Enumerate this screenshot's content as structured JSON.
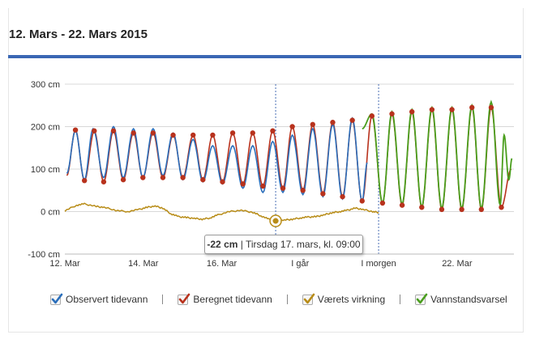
{
  "header": {
    "title": "12. Mars - 22. Mars 2015"
  },
  "colors": {
    "observed": "#2a6ebb",
    "computed": "#b8321d",
    "weather": "#b88c17",
    "forecast": "#4a9e1d",
    "grid": "#d8d8d8",
    "marker_line": "#4a6fb5"
  },
  "chart_data": {
    "type": "line",
    "title": "12. Mars - 22. Mars 2015",
    "xlabel": "",
    "ylabel": "",
    "ylim": [
      -100,
      300
    ],
    "xlim": [
      12.0,
      23.45
    ],
    "y_ticks": [
      {
        "value": 300,
        "label": "300 cm"
      },
      {
        "value": 200,
        "label": "200 cm"
      },
      {
        "value": 100,
        "label": "100 cm"
      },
      {
        "value": 0,
        "label": "0 cm"
      },
      {
        "value": -100,
        "label": "-100 cm"
      }
    ],
    "x_ticks": [
      {
        "value": 12.0,
        "label": "12. Mar"
      },
      {
        "value": 14.0,
        "label": "14. Mar"
      },
      {
        "value": 16.0,
        "label": "16. Mar"
      },
      {
        "value": 18.0,
        "label": "I går"
      },
      {
        "value": 20.0,
        "label": "I morgen"
      },
      {
        "value": 22.0,
        "label": "22. Mar"
      }
    ],
    "vertical_markers": [
      17.375,
      20.0
    ],
    "grid": true,
    "legend_position": "bottom",
    "series": [
      {
        "name": "Observert tidevann",
        "color": "#2a6ebb",
        "extrema": [
          [
            12.05,
            90
          ],
          [
            12.27,
            190
          ],
          [
            12.5,
            75
          ],
          [
            12.72,
            195
          ],
          [
            12.99,
            80
          ],
          [
            13.24,
            200
          ],
          [
            13.49,
            80
          ],
          [
            13.75,
            195
          ],
          [
            13.99,
            80
          ],
          [
            14.25,
            195
          ],
          [
            14.5,
            85
          ],
          [
            14.76,
            185
          ],
          [
            15.01,
            75
          ],
          [
            15.27,
            170
          ],
          [
            15.52,
            70
          ],
          [
            15.77,
            155
          ],
          [
            16.02,
            65
          ],
          [
            16.28,
            155
          ],
          [
            16.54,
            55
          ],
          [
            16.79,
            155
          ],
          [
            17.05,
            45
          ],
          [
            17.3,
            165
          ],
          [
            17.56,
            45
          ],
          [
            17.8,
            180
          ],
          [
            18.07,
            40
          ],
          [
            18.32,
            195
          ],
          [
            18.58,
            35
          ],
          [
            18.83,
            205
          ],
          [
            19.08,
            30
          ],
          [
            19.33,
            220
          ],
          [
            19.58,
            25
          ],
          [
            19.71,
            115
          ]
        ]
      },
      {
        "name": "Beregnet tidevann",
        "color": "#b8321d",
        "extrema": [
          [
            12.05,
            85
          ],
          [
            12.27,
            192
          ],
          [
            12.5,
            73
          ],
          [
            12.75,
            190
          ],
          [
            12.99,
            70
          ],
          [
            13.24,
            190
          ],
          [
            13.49,
            75
          ],
          [
            13.75,
            185
          ],
          [
            13.99,
            80
          ],
          [
            14.25,
            185
          ],
          [
            14.5,
            80
          ],
          [
            14.76,
            180
          ],
          [
            15.01,
            80
          ],
          [
            15.27,
            180
          ],
          [
            15.52,
            75
          ],
          [
            15.77,
            180
          ],
          [
            16.02,
            70
          ],
          [
            16.28,
            185
          ],
          [
            16.54,
            65
          ],
          [
            16.79,
            185
          ],
          [
            17.05,
            60
          ],
          [
            17.3,
            190
          ],
          [
            17.56,
            55
          ],
          [
            17.8,
            200
          ],
          [
            18.07,
            50
          ],
          [
            18.32,
            205
          ],
          [
            18.58,
            42
          ],
          [
            18.83,
            210
          ],
          [
            19.08,
            35
          ],
          [
            19.33,
            215
          ],
          [
            19.58,
            25
          ],
          [
            19.83,
            225
          ],
          [
            20.1,
            20
          ],
          [
            20.34,
            230
          ],
          [
            20.6,
            15
          ],
          [
            20.85,
            235
          ],
          [
            21.1,
            10
          ],
          [
            21.36,
            240
          ],
          [
            21.61,
            5
          ],
          [
            21.87,
            240
          ],
          [
            22.12,
            5
          ],
          [
            22.38,
            245
          ],
          [
            22.62,
            5
          ],
          [
            22.87,
            245
          ],
          [
            23.13,
            10
          ],
          [
            23.38,
            100
          ]
        ],
        "points": [
          [
            12.27,
            192
          ],
          [
            12.5,
            73
          ],
          [
            12.75,
            190
          ],
          [
            12.99,
            70
          ],
          [
            13.24,
            190
          ],
          [
            13.49,
            75
          ],
          [
            13.75,
            185
          ],
          [
            13.99,
            80
          ],
          [
            14.25,
            185
          ],
          [
            14.5,
            80
          ],
          [
            14.76,
            180
          ],
          [
            15.01,
            80
          ],
          [
            15.27,
            180
          ],
          [
            15.52,
            75
          ],
          [
            15.77,
            180
          ],
          [
            16.02,
            70
          ],
          [
            16.28,
            185
          ],
          [
            16.54,
            65
          ],
          [
            16.79,
            185
          ],
          [
            17.05,
            60
          ],
          [
            17.3,
            190
          ],
          [
            17.56,
            55
          ],
          [
            17.8,
            200
          ],
          [
            18.07,
            50
          ],
          [
            18.32,
            205
          ],
          [
            18.58,
            42
          ],
          [
            18.83,
            210
          ],
          [
            19.08,
            35
          ],
          [
            19.33,
            215
          ],
          [
            19.58,
            25
          ],
          [
            19.83,
            225
          ],
          [
            20.1,
            20
          ],
          [
            20.34,
            230
          ],
          [
            20.6,
            15
          ],
          [
            20.85,
            235
          ],
          [
            21.1,
            10
          ],
          [
            21.36,
            240
          ],
          [
            21.61,
            5
          ],
          [
            21.87,
            240
          ],
          [
            22.12,
            5
          ],
          [
            22.38,
            245
          ],
          [
            22.62,
            5
          ],
          [
            22.87,
            245
          ],
          [
            23.13,
            10
          ]
        ]
      },
      {
        "name": "Værets virkning",
        "color": "#b88c17",
        "values": [
          [
            12.0,
            2
          ],
          [
            12.3,
            15
          ],
          [
            12.5,
            18
          ],
          [
            12.8,
            12
          ],
          [
            13.0,
            10
          ],
          [
            13.3,
            3
          ],
          [
            13.6,
            0
          ],
          [
            13.9,
            5
          ],
          [
            14.1,
            10
          ],
          [
            14.3,
            13
          ],
          [
            14.5,
            8
          ],
          [
            14.7,
            -5
          ],
          [
            14.9,
            -12
          ],
          [
            15.1,
            -14
          ],
          [
            15.3,
            -16
          ],
          [
            15.5,
            -18
          ],
          [
            15.7,
            -15
          ],
          [
            15.9,
            -8
          ],
          [
            16.2,
            0
          ],
          [
            16.5,
            3
          ],
          [
            16.8,
            -2
          ],
          [
            17.0,
            -10
          ],
          [
            17.2,
            -18
          ],
          [
            17.375,
            -22
          ],
          [
            17.6,
            -20
          ],
          [
            17.8,
            -18
          ],
          [
            18.0,
            -15
          ],
          [
            18.2,
            -13
          ],
          [
            18.4,
            -12
          ],
          [
            18.6,
            -8
          ],
          [
            18.8,
            -3
          ],
          [
            19.0,
            0
          ],
          [
            19.2,
            3
          ],
          [
            19.4,
            8
          ],
          [
            19.6,
            5
          ],
          [
            19.85,
            0
          ],
          [
            20.0,
            -2
          ]
        ]
      },
      {
        "name": "Vannstandsvarsel",
        "color": "#4a9e1d",
        "extrema": [
          [
            19.58,
            195
          ],
          [
            19.83,
            230
          ],
          [
            20.1,
            20
          ],
          [
            20.34,
            235
          ],
          [
            20.6,
            18
          ],
          [
            20.85,
            240
          ],
          [
            21.1,
            12
          ],
          [
            21.36,
            245
          ],
          [
            21.61,
            8
          ],
          [
            21.87,
            245
          ],
          [
            22.12,
            8
          ],
          [
            22.38,
            250
          ],
          [
            22.62,
            8
          ],
          [
            22.87,
            258
          ],
          [
            23.1,
            15
          ],
          [
            23.2,
            180
          ],
          [
            23.32,
            75
          ],
          [
            23.4,
            125
          ]
        ]
      }
    ],
    "tooltip": {
      "value": "-22 cm",
      "text": " | Tirsdag 17. mars, kl. 09:00",
      "x": 17.375,
      "y": -22
    }
  },
  "legend": {
    "items": [
      {
        "label": "Observert tidevann",
        "checked": true
      },
      {
        "label": "Beregnet tidevann",
        "checked": true
      },
      {
        "label": "Værets virkning",
        "checked": true
      },
      {
        "label": "Vannstandsvarsel",
        "checked": true
      }
    ]
  }
}
